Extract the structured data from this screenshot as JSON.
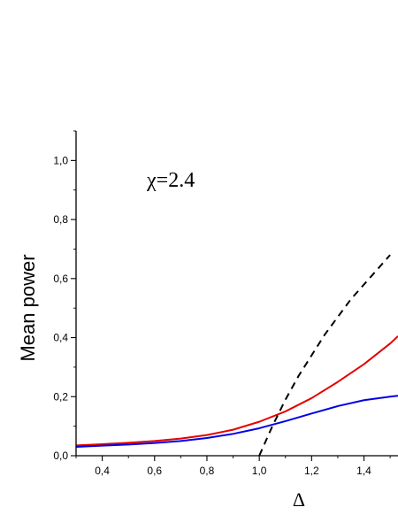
{
  "chart_data": {
    "type": "line",
    "xlabel": "Δ",
    "ylabel": "Mean power",
    "annotation": "χ=2.4",
    "xlim": [
      0.3,
      1.53
    ],
    "ylim": [
      0.0,
      1.1
    ],
    "x_ticks": [
      0.4,
      0.6,
      0.8,
      1.0,
      1.2,
      1.4
    ],
    "x_tick_labels": [
      "0,4",
      "0,6",
      "0,8",
      "1,0",
      "1,2",
      "1,4"
    ],
    "y_ticks": [
      0.0,
      0.2,
      0.4,
      0.6,
      0.8,
      1.0
    ],
    "y_tick_labels": [
      "0,0",
      "0,2",
      "0,4",
      "0,6",
      "0,8",
      "1,0"
    ],
    "grid": false,
    "series": [
      {
        "color": "#e60000",
        "style": "solid",
        "x": [
          0.3,
          0.4,
          0.5,
          0.6,
          0.7,
          0.8,
          0.9,
          1.0,
          1.1,
          1.2,
          1.3,
          1.4,
          1.5,
          1.53
        ],
        "y": [
          0.035,
          0.039,
          0.044,
          0.05,
          0.058,
          0.07,
          0.088,
          0.115,
          0.15,
          0.195,
          0.25,
          0.31,
          0.38,
          0.405
        ]
      },
      {
        "color": "#0000e6",
        "style": "solid",
        "x": [
          0.3,
          0.4,
          0.5,
          0.6,
          0.7,
          0.8,
          0.9,
          1.0,
          1.1,
          1.2,
          1.3,
          1.4,
          1.5,
          1.53
        ],
        "y": [
          0.03,
          0.034,
          0.038,
          0.043,
          0.05,
          0.06,
          0.074,
          0.093,
          0.117,
          0.143,
          0.168,
          0.188,
          0.2,
          0.203
        ]
      },
      {
        "color": "#000000",
        "style": "dashed",
        "x": [
          1.0,
          1.05,
          1.1,
          1.15,
          1.2,
          1.25,
          1.3,
          1.35,
          1.4,
          1.45,
          1.5
        ],
        "y": [
          0.0,
          0.1,
          0.19,
          0.27,
          0.34,
          0.41,
          0.47,
          0.53,
          0.58,
          0.63,
          0.68
        ]
      }
    ]
  }
}
